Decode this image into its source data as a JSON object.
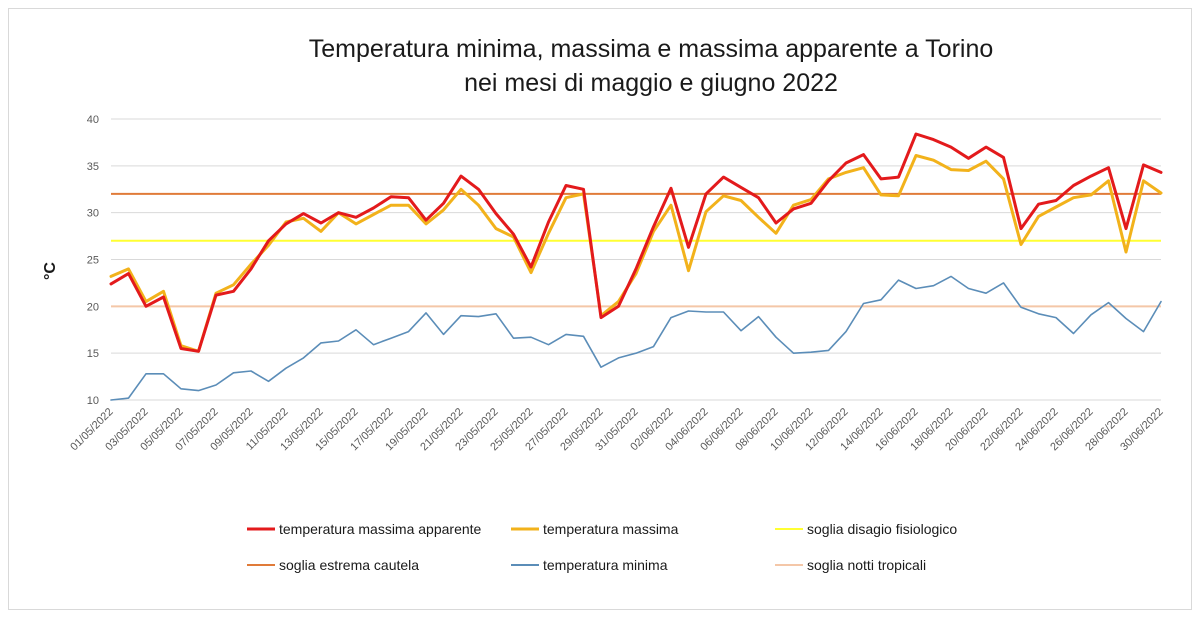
{
  "chart_data": {
    "type": "line",
    "title": [
      "Temperatura minima, massima e massima apparente a Torino",
      "nei mesi di maggio e giugno 2022"
    ],
    "ylabel": "°C",
    "ylim": [
      10,
      40
    ],
    "yticks": [
      10,
      15,
      20,
      25,
      30,
      35,
      40
    ],
    "grid": "horizontal",
    "legend_position": "bottom",
    "x": [
      "01/05/2022",
      "02/05/2022",
      "03/05/2022",
      "04/05/2022",
      "05/05/2022",
      "06/05/2022",
      "07/05/2022",
      "08/05/2022",
      "09/05/2022",
      "10/05/2022",
      "11/05/2022",
      "12/05/2022",
      "13/05/2022",
      "14/05/2022",
      "15/05/2022",
      "16/05/2022",
      "17/05/2022",
      "18/05/2022",
      "19/05/2022",
      "20/05/2022",
      "21/05/2022",
      "22/05/2022",
      "23/05/2022",
      "24/05/2022",
      "25/05/2022",
      "26/05/2022",
      "27/05/2022",
      "28/05/2022",
      "29/05/2022",
      "30/05/2022",
      "31/05/2022",
      "01/06/2022",
      "02/06/2022",
      "03/06/2022",
      "04/06/2022",
      "05/06/2022",
      "06/06/2022",
      "07/06/2022",
      "08/06/2022",
      "09/06/2022",
      "10/06/2022",
      "11/06/2022",
      "12/06/2022",
      "13/06/2022",
      "14/06/2022",
      "15/06/2022",
      "16/06/2022",
      "17/06/2022",
      "18/06/2022",
      "19/06/2022",
      "20/06/2022",
      "21/06/2022",
      "22/06/2022",
      "23/06/2022",
      "24/06/2022",
      "25/06/2022",
      "26/06/2022",
      "27/06/2022",
      "28/06/2022",
      "29/06/2022",
      "30/06/2022"
    ],
    "x_tick_labels": [
      "01/05/2022",
      "03/05/2022",
      "05/05/2022",
      "07/05/2022",
      "09/05/2022",
      "11/05/2022",
      "13/05/2022",
      "15/05/2022",
      "17/05/2022",
      "19/05/2022",
      "21/05/2022",
      "23/05/2022",
      "25/05/2022",
      "27/05/2022",
      "29/05/2022",
      "31/05/2022",
      "02/06/2022",
      "04/06/2022",
      "06/06/2022",
      "08/06/2022",
      "10/06/2022",
      "12/06/2022",
      "14/06/2022",
      "16/06/2022",
      "18/06/2022",
      "20/06/2022",
      "22/06/2022",
      "24/06/2022",
      "26/06/2022",
      "28/06/2022",
      "30/06/2022"
    ],
    "series": [
      {
        "name": "temperatura massima apparente",
        "color": "#e31a1c",
        "stroke_width": 3,
        "values": [
          22.4,
          23.5,
          20.0,
          21.0,
          15.5,
          15.2,
          21.2,
          21.6,
          24.0,
          27.0,
          28.8,
          29.9,
          28.9,
          30.0,
          29.5,
          30.5,
          31.7,
          31.6,
          29.2,
          31.0,
          33.9,
          32.5,
          29.9,
          27.7,
          24.2,
          29.0,
          32.9,
          32.5,
          18.8,
          20.0,
          24.0,
          28.5,
          32.6,
          26.3,
          32.0,
          33.8,
          32.7,
          31.6,
          28.9,
          30.4,
          31.0,
          33.4,
          35.3,
          36.2,
          33.6,
          33.8,
          38.4,
          37.8,
          37.0,
          35.8,
          37.0,
          35.9,
          28.3,
          30.9,
          31.3,
          32.9,
          33.9,
          34.8,
          28.3,
          35.1,
          34.3
        ]
      },
      {
        "name": "temperatura massima",
        "color": "#f2b21b",
        "stroke_width": 3,
        "values": [
          23.2,
          24.0,
          20.5,
          21.6,
          15.8,
          15.2,
          21.4,
          22.3,
          24.5,
          26.5,
          29.0,
          29.4,
          28.0,
          30.0,
          28.8,
          29.8,
          30.8,
          30.8,
          28.8,
          30.3,
          32.5,
          30.8,
          28.3,
          27.4,
          23.6,
          27.8,
          31.6,
          32.0,
          19.0,
          20.5,
          23.5,
          28.0,
          30.8,
          23.8,
          30.1,
          31.8,
          31.3,
          29.5,
          27.8,
          30.8,
          31.4,
          33.6,
          34.3,
          34.8,
          31.9,
          31.8,
          36.1,
          35.6,
          34.6,
          34.5,
          35.5,
          33.6,
          26.6,
          29.6,
          30.6,
          31.6,
          31.9,
          33.4,
          25.8,
          33.4,
          32.1
        ]
      },
      {
        "name": "soglia disagio fisiologico",
        "color": "#ffff33",
        "stroke_width": 2,
        "constant": 27
      },
      {
        "name": "soglia estrema cautela",
        "color": "#e07b39",
        "stroke_width": 2,
        "constant": 32
      },
      {
        "name": "temperatura minima",
        "color": "#5b8db8",
        "stroke_width": 1.6,
        "values": [
          10.0,
          10.2,
          12.8,
          12.8,
          11.2,
          11.0,
          11.6,
          12.9,
          13.1,
          12.0,
          13.4,
          14.5,
          16.1,
          16.3,
          17.5,
          15.9,
          16.6,
          17.3,
          19.3,
          17.0,
          19.0,
          18.9,
          19.2,
          16.6,
          16.7,
          15.9,
          17.0,
          16.8,
          13.5,
          14.5,
          15.0,
          15.7,
          18.8,
          19.5,
          19.4,
          19.4,
          17.4,
          18.9,
          16.7,
          15.0,
          15.1,
          15.3,
          17.3,
          20.3,
          20.7,
          22.8,
          21.9,
          22.2,
          23.2,
          21.9,
          21.4,
          22.5,
          19.9,
          19.2,
          18.8,
          17.1,
          19.1,
          20.4,
          18.7,
          17.3,
          20.5
        ]
      },
      {
        "name": "soglia notti tropicali",
        "color": "#f4c7a8",
        "stroke_width": 2,
        "constant": 20
      }
    ]
  }
}
